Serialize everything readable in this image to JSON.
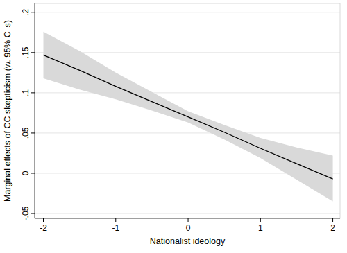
{
  "chart_data": {
    "type": "line",
    "x_label": "Nationalist ideology",
    "y_label": "Marginal effects of CC skepticism (w. 95% CI's)",
    "x": [
      -2,
      -1.5,
      -1,
      -0.5,
      0,
      0.5,
      1,
      1.5,
      2
    ],
    "series": [
      {
        "values": [
          0.147,
          0.128,
          0.108,
          0.089,
          0.07,
          0.051,
          0.031,
          0.012,
          -0.007
        ],
        "lower": [
          0.118,
          0.104,
          0.092,
          0.078,
          0.063,
          0.042,
          0.019,
          -0.008,
          -0.035
        ],
        "upper": [
          0.176,
          0.152,
          0.125,
          0.101,
          0.077,
          0.06,
          0.044,
          0.032,
          0.022
        ],
        "color": "#000000"
      }
    ],
    "xlim": [
      -2.12,
      2.1
    ],
    "ylim": [
      -0.056,
      0.211
    ],
    "xticks": [
      -2,
      -1,
      0,
      1,
      2
    ],
    "yticks": [
      {
        "value": -0.05,
        "label": "-.05"
      },
      {
        "value": 0,
        "label": "0"
      },
      {
        "value": 0.05,
        "label": ".05"
      },
      {
        "value": 0.1,
        "label": ".1"
      },
      {
        "value": 0.15,
        "label": ".15"
      },
      {
        "value": 0.2,
        "label": ".2"
      }
    ],
    "grid": true
  }
}
